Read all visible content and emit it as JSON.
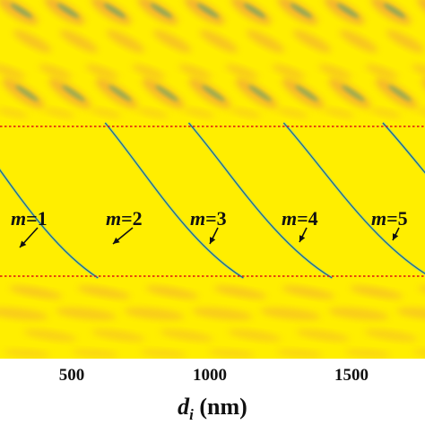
{
  "chart_data": {
    "type": "heatmap",
    "title": "",
    "xlabel_symbol": "d",
    "xlabel_sub": "i",
    "xlabel_unit": " (nm)",
    "ylabel": "",
    "xlim": [
      250,
      1750
    ],
    "x_ticks": [
      500,
      1000,
      1500
    ],
    "x_tick_labels": [
      "500",
      "1000",
      "1500"
    ],
    "modes": [
      {
        "label_var": "m",
        "label_eq": "=1",
        "curve_x_start": 145
      },
      {
        "label_var": "m",
        "label_eq": "=2",
        "curve_x_start": 640
      },
      {
        "label_var": "m",
        "label_eq": "=3",
        "curve_x_start": 935
      },
      {
        "label_var": "m",
        "label_eq": "=4",
        "curve_x_start": 1270
      },
      {
        "label_var": "m",
        "label_eq": "=5",
        "curve_x_start": 1620
      }
    ],
    "background_color": "#ffee00",
    "band_color": "#f0a040",
    "mode_line_color": "#1c6a8a",
    "dashed_line_color": "#dd1111",
    "grid": false,
    "legend": "none"
  }
}
